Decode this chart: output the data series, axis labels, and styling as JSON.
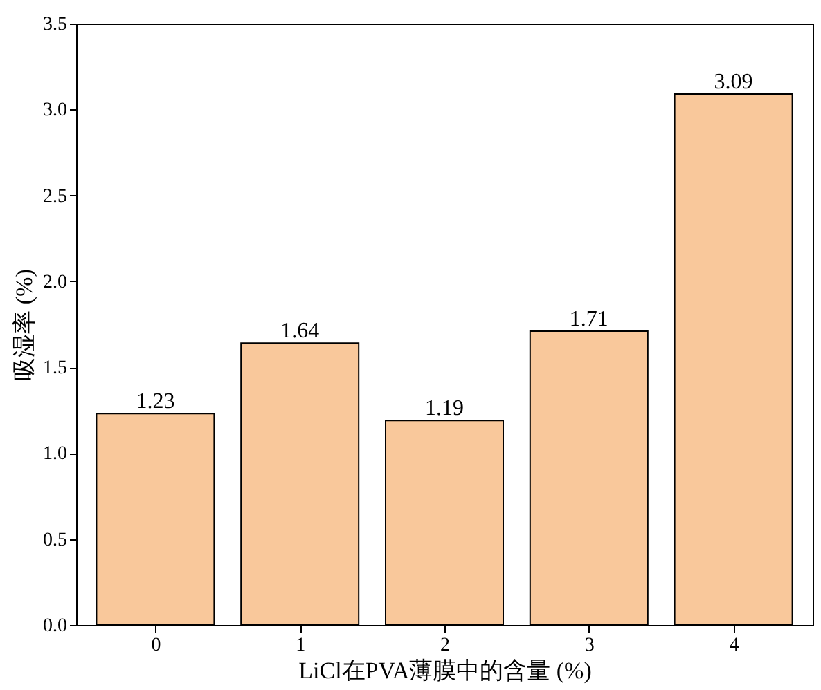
{
  "chart_data": {
    "type": "bar",
    "xlabel": "LiCl在PVA薄膜中的含量 (%)",
    "ylabel": "吸湿率 (%)",
    "categories": [
      "0",
      "1",
      "2",
      "3",
      "4"
    ],
    "values": [
      1.23,
      1.64,
      1.19,
      1.71,
      3.09
    ],
    "color": "#f9c89b",
    "ylim": [
      0,
      3.5
    ],
    "yticks": [
      {
        "value": 0,
        "label": "0.0"
      },
      0.5,
      {
        "value": 1,
        "label": "1.0"
      },
      1.5,
      {
        "value": 2,
        "label": "2.0"
      },
      2.5,
      {
        "value": 3,
        "label": "3.0"
      },
      3.5
    ],
    "data_labels": true,
    "grid": false
  }
}
